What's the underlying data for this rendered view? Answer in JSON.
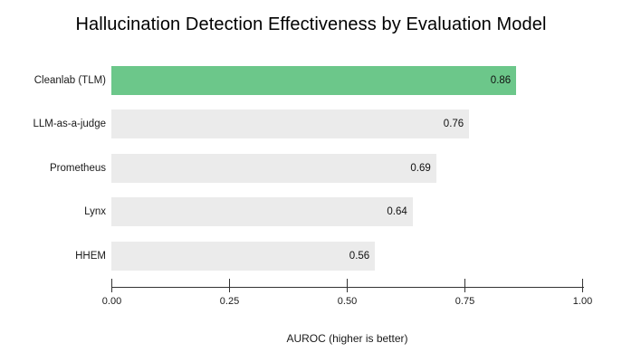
{
  "title": "Hallucination Detection Effectiveness by Evaluation Model",
  "chart_data": {
    "type": "bar",
    "orientation": "horizontal",
    "title": "Hallucination Detection Effectiveness by Evaluation Model",
    "categories": [
      "Cleanlab (TLM)",
      "LLM-as-a-judge",
      "Prometheus",
      "Lynx",
      "HHEM"
    ],
    "values": [
      0.86,
      0.76,
      0.69,
      0.64,
      0.56
    ],
    "value_labels": [
      "0.86",
      "0.76",
      "0.69",
      "0.64",
      "0.56"
    ],
    "bar_colors": [
      "#6cc78a",
      "#ebebeb",
      "#ebebeb",
      "#ebebeb",
      "#ebebeb"
    ],
    "highlight_color": "#6cc78a",
    "default_color": "#ebebeb",
    "xlabel": "AUROC (higher is better)",
    "ylabel": "",
    "xlim": [
      0,
      1
    ],
    "x_tick_labels": [
      "0.00",
      "0.25",
      "0.50",
      "0.75",
      "1.00"
    ],
    "x_tick_values": [
      0,
      0.25,
      0.5,
      0.75,
      1.0
    ],
    "grid": false,
    "legend": "none",
    "axis_color": "#333333",
    "background_color": "#ffffff"
  }
}
